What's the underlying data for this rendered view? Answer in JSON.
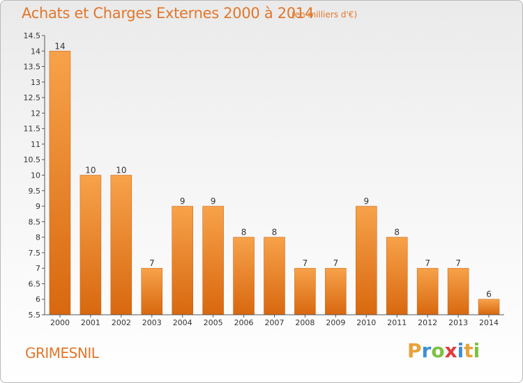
{
  "title": "Achats et Charges Externes 2000 à 2014",
  "subtitle": "(en milliers d'€)",
  "commune": "GRIMESNIL",
  "brand": {
    "letters": [
      "P",
      "r",
      "o",
      "x",
      "i",
      "t",
      "i"
    ],
    "colors": [
      "#e8a23a",
      "#3d8fd6",
      "#7cc242",
      "#e23b3b",
      "#3d8fd6",
      "#e8a23a",
      "#7cc242"
    ]
  },
  "colors": {
    "bar": "#f08a2e",
    "bar_dark": "#d96a10",
    "text": "#e2762a",
    "axis": "#444444"
  },
  "chart_data": {
    "type": "bar",
    "categories": [
      "2000",
      "2001",
      "2002",
      "2003",
      "2004",
      "2005",
      "2006",
      "2007",
      "2008",
      "2009",
      "2010",
      "2011",
      "2012",
      "2013",
      "2014"
    ],
    "values": [
      14,
      10,
      10,
      7,
      9,
      9,
      8,
      8,
      7,
      7,
      9,
      8,
      7,
      7,
      6
    ],
    "data_labels": [
      "14",
      "10",
      "10",
      "7",
      "9",
      "9",
      "8",
      "8",
      "7",
      "7",
      "9",
      "8",
      "7",
      "7",
      "6"
    ],
    "ylim": [
      5.5,
      14.5
    ],
    "yticks": [
      "5.5",
      "6",
      "6.5",
      "7",
      "7.5",
      "8",
      "8.5",
      "9",
      "9.5",
      "10",
      "10.5",
      "11",
      "11.5",
      "12",
      "12.5",
      "13",
      "13.5",
      "14",
      "14.5"
    ],
    "xlabel": "",
    "ylabel": "",
    "grid": false
  }
}
